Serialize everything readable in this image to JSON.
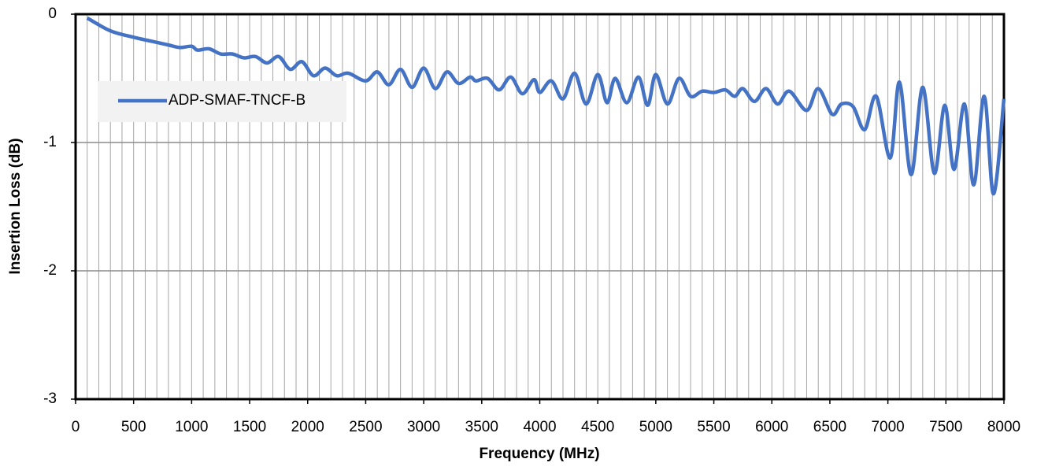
{
  "chart_data": {
    "type": "line",
    "xlabel": "Frequency (MHz)",
    "ylabel": "Insertion Loss (dB)",
    "xlim": [
      0,
      8000
    ],
    "ylim": [
      -3,
      0
    ],
    "xticks": [
      0,
      500,
      1000,
      1500,
      2000,
      2500,
      3000,
      3500,
      4000,
      4500,
      5000,
      5500,
      6000,
      6500,
      7000,
      7500,
      8000
    ],
    "xminorticks": [
      0,
      100,
      200,
      300,
      400,
      500,
      600,
      700,
      800,
      900,
      1000,
      1100,
      1200,
      1300,
      1400,
      1500,
      1600,
      1700,
      1800,
      1900,
      2000,
      2100,
      2200,
      2300,
      2400,
      2500,
      2600,
      2700,
      2800,
      2900,
      3000,
      3100,
      3200,
      3300,
      3400,
      3500,
      3600,
      3700,
      3800,
      3900,
      4000,
      4100,
      4200,
      4300,
      4400,
      4500,
      4600,
      4700,
      4800,
      4900,
      5000,
      5100,
      5200,
      5300,
      5400,
      5500,
      5600,
      5700,
      5800,
      5900,
      6000,
      6100,
      6200,
      6300,
      6400,
      6500,
      6600,
      6700,
      6800,
      6900,
      7000,
      7100,
      7200,
      7300,
      7400,
      7500,
      7600,
      7700,
      7800,
      7900,
      8000
    ],
    "yticks": [
      0,
      -1,
      -2,
      -3
    ],
    "grid": true,
    "legend": "upper left",
    "x": [
      100,
      300,
      500,
      700,
      800,
      900,
      1000,
      1050,
      1150,
      1250,
      1350,
      1450,
      1550,
      1650,
      1750,
      1850,
      1950,
      2050,
      2150,
      2250,
      2350,
      2500,
      2600,
      2700,
      2800,
      2900,
      3000,
      3100,
      3200,
      3300,
      3400,
      3450,
      3550,
      3650,
      3750,
      3850,
      3950,
      4000,
      4100,
      4200,
      4300,
      4400,
      4500,
      4580,
      4650,
      4750,
      4850,
      4930,
      5000,
      5100,
      5200,
      5300,
      5400,
      5500,
      5600,
      5680,
      5750,
      5850,
      5950,
      6050,
      6150,
      6300,
      6400,
      6520,
      6600,
      6700,
      6800,
      6900,
      7020,
      7100,
      7200,
      7300,
      7400,
      7490,
      7570,
      7660,
      7740,
      7830,
      7910,
      8000
    ],
    "series": [
      {
        "name": "ADP-SMAF-TNCF-B",
        "color": "#4472c4",
        "values": [
          -0.03,
          -0.13,
          -0.18,
          -0.22,
          -0.24,
          -0.26,
          -0.25,
          -0.28,
          -0.27,
          -0.31,
          -0.31,
          -0.34,
          -0.33,
          -0.38,
          -0.33,
          -0.43,
          -0.37,
          -0.48,
          -0.42,
          -0.48,
          -0.46,
          -0.52,
          -0.45,
          -0.55,
          -0.43,
          -0.57,
          -0.42,
          -0.58,
          -0.45,
          -0.54,
          -0.49,
          -0.52,
          -0.5,
          -0.59,
          -0.49,
          -0.62,
          -0.51,
          -0.61,
          -0.52,
          -0.66,
          -0.46,
          -0.7,
          -0.47,
          -0.69,
          -0.5,
          -0.69,
          -0.49,
          -0.71,
          -0.47,
          -0.7,
          -0.5,
          -0.64,
          -0.6,
          -0.61,
          -0.59,
          -0.64,
          -0.58,
          -0.68,
          -0.58,
          -0.7,
          -0.6,
          -0.75,
          -0.58,
          -0.78,
          -0.7,
          -0.72,
          -0.9,
          -0.64,
          -1.12,
          -0.53,
          -1.25,
          -0.57,
          -1.24,
          -0.71,
          -1.21,
          -0.7,
          -1.33,
          -0.64,
          -1.4,
          -0.66
        ]
      }
    ]
  }
}
